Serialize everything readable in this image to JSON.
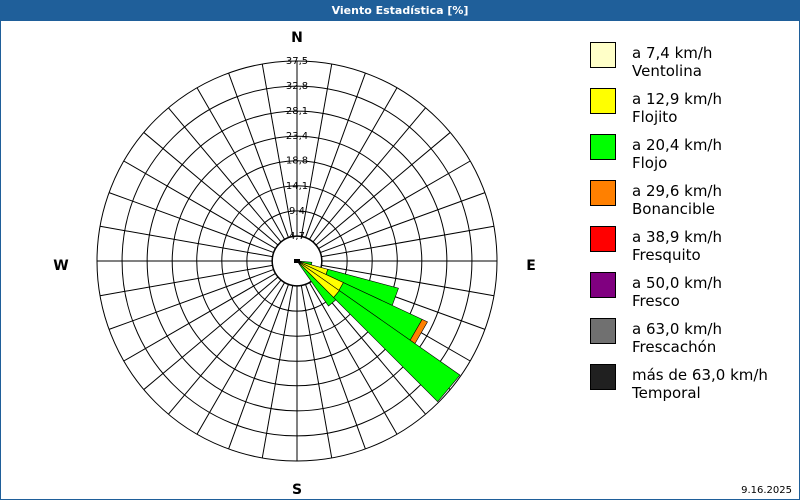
{
  "window": {
    "title": "Viento Estadística [%]",
    "date": "9.16.2025"
  },
  "chart_data": {
    "type": "windrose",
    "title": "Viento Estadística [%]",
    "compass": {
      "n": "N",
      "e": "E",
      "s": "S",
      "w": "W"
    },
    "rmax": 37.5,
    "ring_labels": [
      "4,7",
      "9,4",
      "14,1",
      "18,8",
      "23,4",
      "28,1",
      "32,8",
      "37,5"
    ],
    "ring_values": [
      4.7,
      9.4,
      14.1,
      18.8,
      23.4,
      28.1,
      32.8,
      37.5
    ],
    "sector_width_deg": 10,
    "classes": [
      {
        "range": "a 7,4 km/h",
        "name": "Ventolina",
        "color": "#ffffc8"
      },
      {
        "range": "a 12,9 km/h",
        "name": "Flojito",
        "color": "#ffff00"
      },
      {
        "range": "a 20,4 km/h",
        "name": "Flojo",
        "color": "#00ff00"
      },
      {
        "range": "a 29,6 km/h",
        "name": "Bonancible",
        "color": "#ff8000"
      },
      {
        "range": "a 38,9 km/h",
        "name": "Fresquito",
        "color": "#ff0000"
      },
      {
        "range": "a 50,0 km/h",
        "name": "Fresco",
        "color": "#800080"
      },
      {
        "range": "a 63,0 km/h",
        "name": "Frescachón",
        "color": "#707070"
      },
      {
        "range": "más de 63,0 km/h",
        "name": "Temporal",
        "color": "#202020"
      }
    ],
    "directions": [
      {
        "deg": 100,
        "values": [
          0.3,
          0.2,
          2.3,
          0,
          0,
          0,
          0,
          0
        ]
      },
      {
        "deg": 110,
        "values": [
          0.3,
          5.7,
          13.7,
          0,
          0,
          0,
          0,
          0
        ]
      },
      {
        "deg": 120,
        "values": [
          0.3,
          9.3,
          16.3,
          1.1,
          0,
          0,
          0,
          0
        ]
      },
      {
        "deg": 130,
        "values": [
          0.3,
          9.4,
          27.6,
          0,
          0,
          0,
          0,
          0
        ]
      },
      {
        "deg": 140,
        "values": [
          0.3,
          0.5,
          9.5,
          0,
          0,
          0,
          0,
          0
        ]
      }
    ],
    "grid": true
  }
}
